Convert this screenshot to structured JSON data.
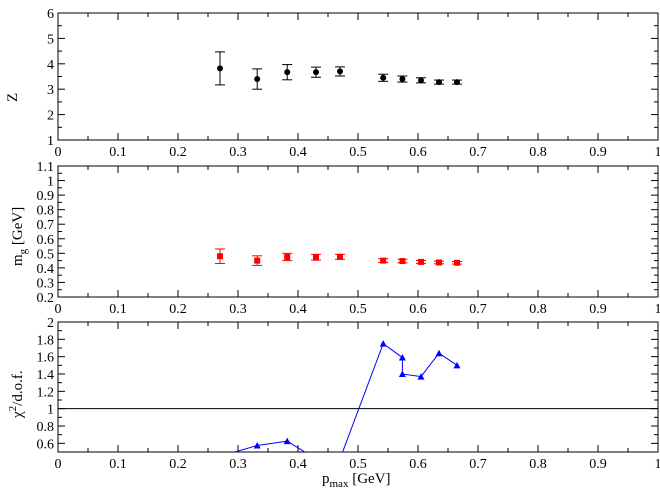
{
  "chart_data": [
    {
      "type": "scatter",
      "title": "",
      "xlabel": "",
      "ylabel": "Z",
      "xlim": [
        0,
        1
      ],
      "ylim": [
        1,
        6
      ],
      "x_ticks": [
        "0",
        "0.1",
        "0.2",
        "0.3",
        "0.4",
        "0.5",
        "0.6",
        "0.7",
        "0.8",
        "0.9",
        "1"
      ],
      "y_ticks": [
        "1",
        "2",
        "3",
        "4",
        "5",
        "6"
      ],
      "grid": false,
      "series": [
        {
          "color": "#000000",
          "marker": "circle",
          "error_bars": true,
          "points": [
            {
              "x": 0.27,
              "y": 3.82,
              "err": 0.65
            },
            {
              "x": 0.332,
              "y": 3.4,
              "err": 0.4
            },
            {
              "x": 0.382,
              "y": 3.67,
              "err": 0.3
            },
            {
              "x": 0.43,
              "y": 3.67,
              "err": 0.2
            },
            {
              "x": 0.47,
              "y": 3.7,
              "err": 0.18
            },
            {
              "x": 0.542,
              "y": 3.45,
              "err": 0.14
            },
            {
              "x": 0.574,
              "y": 3.4,
              "err": 0.12
            },
            {
              "x": 0.605,
              "y": 3.35,
              "err": 0.1
            },
            {
              "x": 0.635,
              "y": 3.28,
              "err": 0.08
            },
            {
              "x": 0.665,
              "y": 3.28,
              "err": 0.08
            }
          ]
        }
      ]
    },
    {
      "type": "scatter",
      "title": "",
      "xlabel": "",
      "ylabel_main": "m",
      "ylabel_sub": "g",
      "ylabel_suffix": " [GeV]",
      "xlim": [
        0,
        1
      ],
      "ylim": [
        0.2,
        1.1
      ],
      "x_ticks": [
        "0",
        "0.1",
        "0.2",
        "0.3",
        "0.4",
        "0.5",
        "0.6",
        "0.7",
        "0.8",
        "0.9",
        "1"
      ],
      "y_ticks": [
        "0.2",
        "0.3",
        "0.4",
        "0.5",
        "0.6",
        "0.7",
        "0.8",
        "0.9",
        "1",
        "1.1"
      ],
      "grid": false,
      "series": [
        {
          "color": "#ff0000",
          "marker": "square",
          "error_bars": true,
          "points": [
            {
              "x": 0.27,
              "y": 0.48,
              "err": 0.05
            },
            {
              "x": 0.332,
              "y": 0.45,
              "err": 0.033
            },
            {
              "x": 0.382,
              "y": 0.475,
              "err": 0.025
            },
            {
              "x": 0.43,
              "y": 0.473,
              "err": 0.02
            },
            {
              "x": 0.47,
              "y": 0.476,
              "err": 0.017
            },
            {
              "x": 0.542,
              "y": 0.45,
              "err": 0.013
            },
            {
              "x": 0.574,
              "y": 0.447,
              "err": 0.012
            },
            {
              "x": 0.605,
              "y": 0.441,
              "err": 0.01
            },
            {
              "x": 0.635,
              "y": 0.437,
              "err": 0.009
            },
            {
              "x": 0.665,
              "y": 0.435,
              "err": 0.009
            }
          ]
        }
      ]
    },
    {
      "type": "line",
      "title": "",
      "xlabel_main": "p",
      "xlabel_sub": "max",
      "xlabel_suffix": " [GeV]",
      "ylabel_main": "χ",
      "ylabel_sup": "2",
      "ylabel_suffix": "/d.o.f.",
      "xlim": [
        0,
        1
      ],
      "ylim": [
        0.5,
        2
      ],
      "x_ticks": [
        "0",
        "0.1",
        "0.2",
        "0.3",
        "0.4",
        "0.5",
        "0.6",
        "0.7",
        "0.8",
        "0.9",
        "1"
      ],
      "y_ticks": [
        "0.6",
        "0.8",
        "1",
        "1.2",
        "1.4",
        "1.6",
        "1.8",
        "2"
      ],
      "grid": false,
      "reference_line_y": 1,
      "series": [
        {
          "color": "#0000ff",
          "marker": "triangle",
          "points": [
            {
              "x": 0.27,
              "y": 0.45
            },
            {
              "x": 0.332,
              "y": 0.575
            },
            {
              "x": 0.382,
              "y": 0.625
            },
            {
              "x": 0.43,
              "y": 0.42
            },
            {
              "x": 0.47,
              "y": 0.42
            },
            {
              "x": 0.542,
              "y": 1.75
            },
            {
              "x": 0.574,
              "y": 1.59
            },
            {
              "x": 0.574,
              "y": 1.4
            },
            {
              "x": 0.605,
              "y": 1.37
            },
            {
              "x": 0.635,
              "y": 1.64
            },
            {
              "x": 0.665,
              "y": 1.5
            }
          ]
        }
      ]
    }
  ]
}
